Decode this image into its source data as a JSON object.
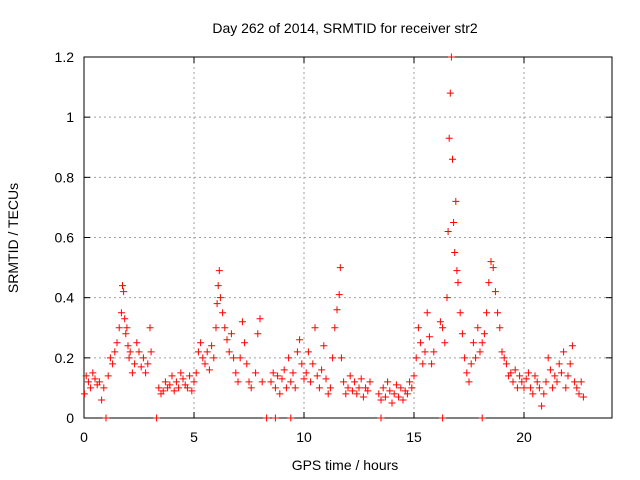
{
  "chart_data": {
    "type": "scatter",
    "title": "Day 262 of 2014, SRMTID for receiver str2",
    "xlabel": "GPS time / hours",
    "ylabel": "SRMTID / TECUs",
    "xlim": [
      0,
      24
    ],
    "ylim": [
      0,
      1.2
    ],
    "grid": true,
    "marker": "+",
    "color": "#ff0000",
    "x_ticks": [
      0,
      5,
      10,
      15,
      20
    ],
    "x_tick_labels": [
      "0",
      "5",
      "10",
      "15",
      "20"
    ],
    "y_ticks": [
      0,
      0.2,
      0.4,
      0.6,
      0.8,
      1.0,
      1.2
    ],
    "y_tick_labels": [
      "0",
      "0.2",
      "0.4",
      "0.6",
      "0.8",
      "1",
      "1.2"
    ],
    "series": [
      {
        "name": "str2",
        "x": [
          0.02,
          0.1,
          0.2,
          0.3,
          0.4,
          0.5,
          0.6,
          0.7,
          0.8,
          0.9,
          1.1,
          1.2,
          1.3,
          1.4,
          1.5,
          1.6,
          1.7,
          1.75,
          1.8,
          1.85,
          1.9,
          1.95,
          2.0,
          2.05,
          2.1,
          2.2,
          2.3,
          2.4,
          2.5,
          2.6,
          2.7,
          2.8,
          2.9,
          3.0,
          3.05,
          3.4,
          3.5,
          3.6,
          3.7,
          3.8,
          3.9,
          4.0,
          4.1,
          4.2,
          4.3,
          4.4,
          4.5,
          4.6,
          4.7,
          4.8,
          4.9,
          5.0,
          5.1,
          5.2,
          5.3,
          5.4,
          5.5,
          5.6,
          5.7,
          5.8,
          5.9,
          6.0,
          6.05,
          6.1,
          6.15,
          6.2,
          6.3,
          6.4,
          6.5,
          6.6,
          6.7,
          6.8,
          6.9,
          7.0,
          7.1,
          7.2,
          7.3,
          7.4,
          7.5,
          7.6,
          7.8,
          7.9,
          8.0,
          8.1,
          8.5,
          8.6,
          8.7,
          8.8,
          8.9,
          9.0,
          9.1,
          9.2,
          9.3,
          9.4,
          9.5,
          9.6,
          9.7,
          9.8,
          9.9,
          10.0,
          10.1,
          10.2,
          10.3,
          10.4,
          10.5,
          10.6,
          10.7,
          10.8,
          10.9,
          11.0,
          11.1,
          11.2,
          11.3,
          11.4,
          11.5,
          11.6,
          11.65,
          11.7,
          11.8,
          11.9,
          12.0,
          12.1,
          12.2,
          12.3,
          12.4,
          12.5,
          12.6,
          12.7,
          12.8,
          12.9,
          13.0,
          13.4,
          13.5,
          13.6,
          13.7,
          13.8,
          13.9,
          14.0,
          14.1,
          14.2,
          14.3,
          14.4,
          14.5,
          14.6,
          14.7,
          14.8,
          14.9,
          15.0,
          15.1,
          15.2,
          15.3,
          15.4,
          15.5,
          15.6,
          15.7,
          15.8,
          15.9,
          16.2,
          16.3,
          16.4,
          16.5,
          16.55,
          16.6,
          16.65,
          16.7,
          16.75,
          16.8,
          16.85,
          16.9,
          16.95,
          17.0,
          17.1,
          17.2,
          17.3,
          17.4,
          17.5,
          17.6,
          17.7,
          17.8,
          17.9,
          18.0,
          18.1,
          18.2,
          18.3,
          18.4,
          18.5,
          18.6,
          18.7,
          18.8,
          18.9,
          19.0,
          19.1,
          19.2,
          19.3,
          19.4,
          19.5,
          19.6,
          19.7,
          19.8,
          19.9,
          20.0,
          20.1,
          20.2,
          20.3,
          20.4,
          20.5,
          20.6,
          20.7,
          20.8,
          20.9,
          21.0,
          21.1,
          21.2,
          21.3,
          21.4,
          21.5,
          21.6,
          21.7,
          21.8,
          21.9,
          22.0,
          22.1,
          22.2,
          22.3,
          22.4,
          22.5,
          22.6,
          22.7,
          1.0,
          3.3,
          8.3,
          8.7,
          9.4,
          13.5,
          16.3,
          18.1
        ],
        "y": [
          0.08,
          0.14,
          0.12,
          0.1,
          0.15,
          0.13,
          0.11,
          0.12,
          0.06,
          0.1,
          0.14,
          0.2,
          0.18,
          0.22,
          0.25,
          0.3,
          0.35,
          0.44,
          0.42,
          0.33,
          0.28,
          0.3,
          0.24,
          0.2,
          0.22,
          0.15,
          0.18,
          0.25,
          0.22,
          0.17,
          0.2,
          0.15,
          0.18,
          0.3,
          0.22,
          0.1,
          0.08,
          0.09,
          0.12,
          0.1,
          0.11,
          0.14,
          0.09,
          0.12,
          0.1,
          0.15,
          0.13,
          0.11,
          0.1,
          0.14,
          0.09,
          0.12,
          0.15,
          0.22,
          0.25,
          0.2,
          0.18,
          0.22,
          0.16,
          0.24,
          0.2,
          0.3,
          0.38,
          0.44,
          0.49,
          0.4,
          0.35,
          0.3,
          0.26,
          0.22,
          0.28,
          0.2,
          0.15,
          0.12,
          0.2,
          0.32,
          0.25,
          0.18,
          0.12,
          0.1,
          0.15,
          0.28,
          0.33,
          0.12,
          0.12,
          0.15,
          0.1,
          0.14,
          0.08,
          0.13,
          0.16,
          0.1,
          0.2,
          0.12,
          0.15,
          0.1,
          0.22,
          0.26,
          0.18,
          0.13,
          0.15,
          0.22,
          0.12,
          0.18,
          0.3,
          0.14,
          0.1,
          0.16,
          0.24,
          0.13,
          0.08,
          0.1,
          0.2,
          0.3,
          0.36,
          0.41,
          0.5,
          0.2,
          0.12,
          0.08,
          0.1,
          0.14,
          0.09,
          0.12,
          0.08,
          0.1,
          0.13,
          0.07,
          0.1,
          0.09,
          0.12,
          0.08,
          0.06,
          0.1,
          0.07,
          0.12,
          0.09,
          0.05,
          0.08,
          0.11,
          0.07,
          0.1,
          0.06,
          0.09,
          0.08,
          0.12,
          0.1,
          0.14,
          0.2,
          0.3,
          0.25,
          0.18,
          0.22,
          0.35,
          0.27,
          0.18,
          0.22,
          0.32,
          0.3,
          0.25,
          0.4,
          0.62,
          0.93,
          1.08,
          1.2,
          0.86,
          0.65,
          0.55,
          0.72,
          0.49,
          0.45,
          0.35,
          0.28,
          0.2,
          0.15,
          0.12,
          0.18,
          0.25,
          0.2,
          0.3,
          0.22,
          0.25,
          0.28,
          0.35,
          0.45,
          0.52,
          0.5,
          0.42,
          0.35,
          0.3,
          0.22,
          0.2,
          0.18,
          0.14,
          0.15,
          0.12,
          0.16,
          0.1,
          0.14,
          0.12,
          0.1,
          0.13,
          0.15,
          0.1,
          0.08,
          0.14,
          0.12,
          0.1,
          0.04,
          0.08,
          0.12,
          0.2,
          0.16,
          0.1,
          0.14,
          0.12,
          0.18,
          0.15,
          0.22,
          0.1,
          0.14,
          0.18,
          0.24,
          0.12,
          0.1,
          0.08,
          0.12,
          0.07,
          0,
          0,
          0,
          0,
          0,
          0,
          0,
          0
        ]
      }
    ]
  }
}
